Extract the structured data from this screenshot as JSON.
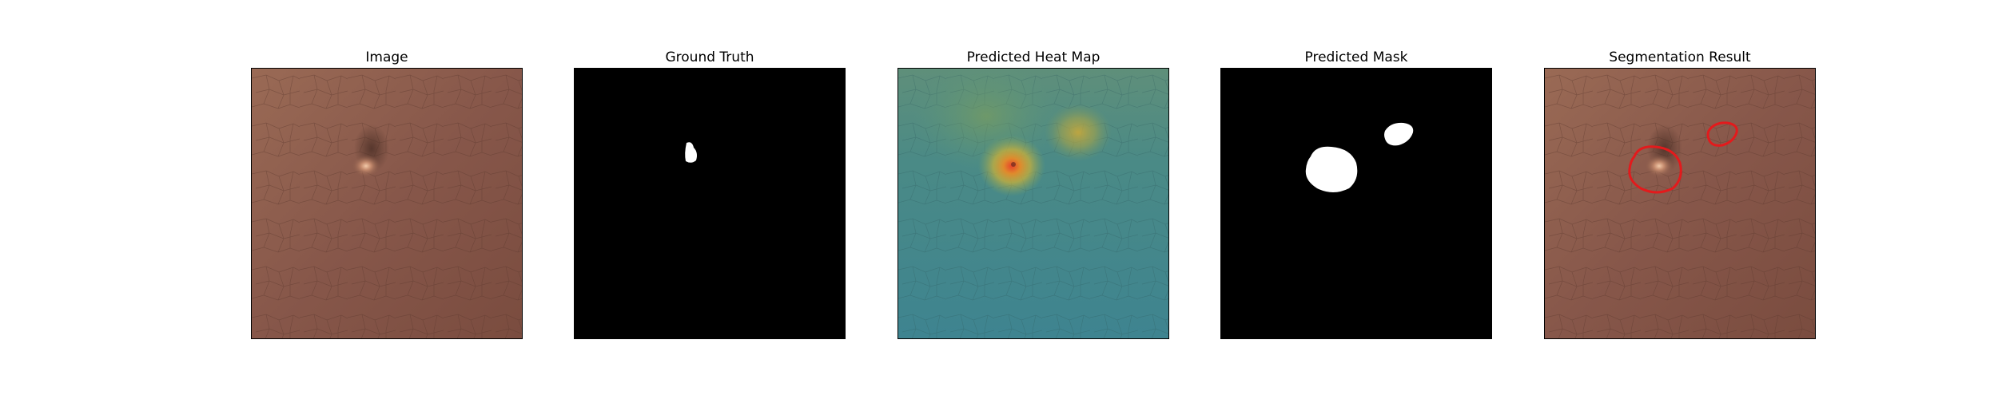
{
  "figure": {
    "panels": [
      {
        "key": "image",
        "title": "Image"
      },
      {
        "key": "ground_truth",
        "title": "Ground Truth"
      },
      {
        "key": "heat_map",
        "title": "Predicted Heat Map"
      },
      {
        "key": "mask",
        "title": "Predicted Mask"
      },
      {
        "key": "segmentation",
        "title": "Segmentation Result"
      }
    ]
  },
  "colors": {
    "leather_base": "#8a5a48",
    "leather_light": "#9c6b56",
    "leather_dark": "#6f4638",
    "heat_cool": "#3f8a8f",
    "heat_warm": "#d9b23a",
    "heat_hot": "#e0502a",
    "mask_bg": "#000000",
    "mask_fg": "#ffffff",
    "contour": "#e31a1c"
  }
}
